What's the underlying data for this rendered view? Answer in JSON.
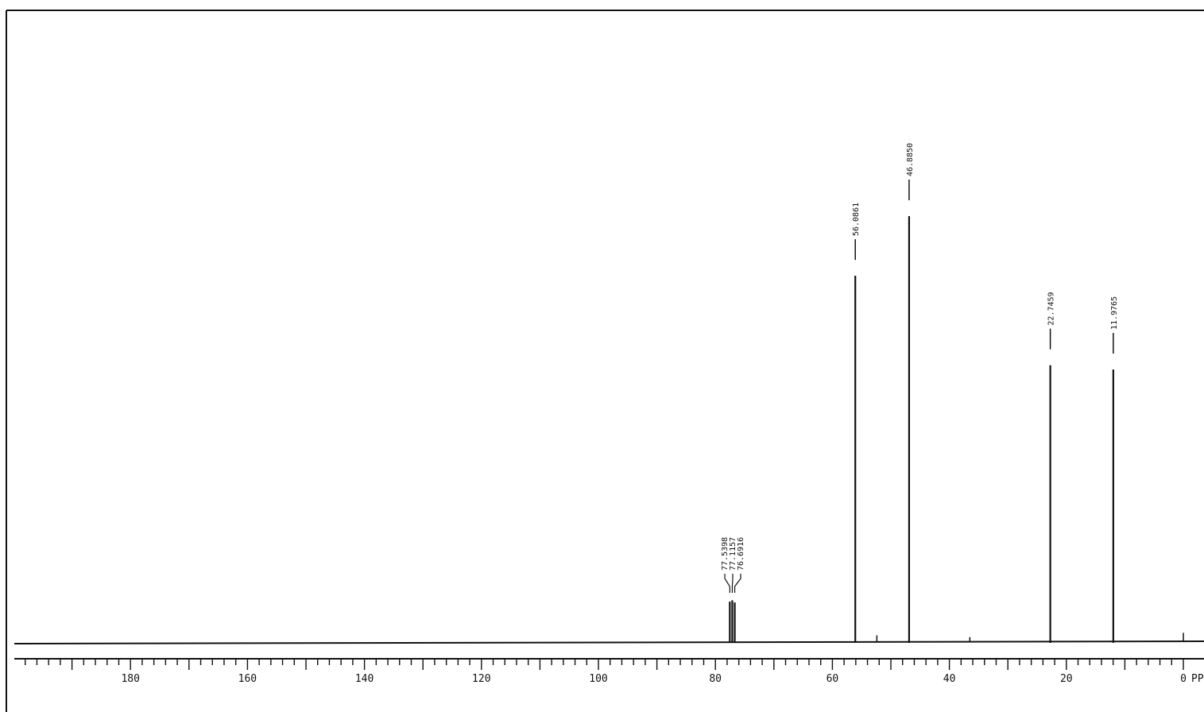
{
  "chart_data": {
    "type": "line",
    "title": "",
    "xlabel": "PPM",
    "ylabel": "",
    "xlim": [
      203,
      -3
    ],
    "ylim": [
      0,
      1
    ],
    "x_reversed": true,
    "grid": false,
    "legend": "none",
    "x_ticks": [
      "180",
      "160",
      "140",
      "120",
      "100",
      "80",
      "60",
      "40",
      "20",
      "0"
    ],
    "x_tick_values": [
      180,
      160,
      140,
      120,
      100,
      80,
      60,
      40,
      20,
      0
    ],
    "peaks": [
      {
        "ppm": 77.5398,
        "label": "77.5398",
        "intensity": 0.095
      },
      {
        "ppm": 77.1157,
        "label": "77.1157",
        "intensity": 0.098
      },
      {
        "ppm": 76.6916,
        "label": "76.6916",
        "intensity": 0.093
      },
      {
        "ppm": 56.0861,
        "label": "56.0861",
        "intensity": 0.86
      },
      {
        "ppm": 46.885,
        "label": "46.8850",
        "intensity": 1.0
      },
      {
        "ppm": 22.7459,
        "label": "22.7459",
        "intensity": 0.65
      },
      {
        "ppm": 11.9765,
        "label": "11.9765",
        "intensity": 0.64
      }
    ],
    "minor_peaks": [
      {
        "ppm": 52.4,
        "intensity": 0.012
      },
      {
        "ppm": 36.5,
        "intensity": 0.008
      },
      {
        "ppm": 0.0,
        "intensity": 0.018
      }
    ]
  },
  "colors": {
    "ink": "#111111",
    "background": "#ffffff"
  }
}
